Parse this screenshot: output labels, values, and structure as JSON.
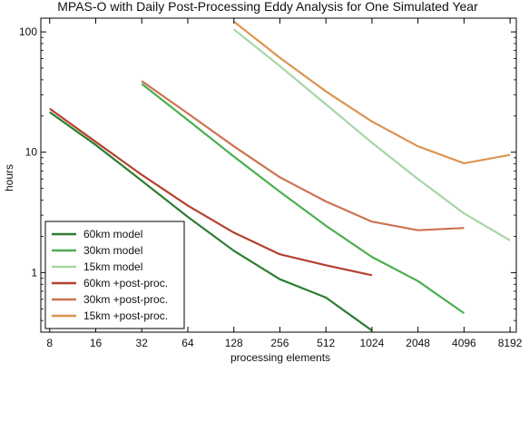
{
  "chart_data": {
    "type": "line",
    "title": "MPAS-O with Daily Post-Processing Eddy Analysis for One Simulated Year",
    "xlabel": "processing elements",
    "ylabel": "hours",
    "x_scale": "log2",
    "y_scale": "log10",
    "xlim": [
      7,
      9000
    ],
    "ylim": [
      0.32,
      130
    ],
    "xticks": [
      8,
      16,
      32,
      64,
      128,
      256,
      512,
      1024,
      2048,
      4096,
      8192
    ],
    "xtick_labels": [
      "8",
      "16",
      "32",
      "64",
      "128",
      "256",
      "512",
      "1024",
      "2048",
      "4096",
      "8192"
    ],
    "yticks": [
      1,
      10,
      100
    ],
    "ytick_labels": [
      "1",
      "10",
      "100"
    ],
    "grid": false,
    "legend_position": "lower-left",
    "series": [
      {
        "name": "60km model",
        "color": "#2e7d32",
        "x": [
          8,
          16,
          32,
          64,
          128,
          256,
          512,
          1024
        ],
        "y": [
          21.5,
          11.5,
          5.8,
          2.9,
          1.52,
          0.88,
          0.62,
          0.33
        ]
      },
      {
        "name": "30km model",
        "color": "#4caf50",
        "x": [
          32,
          64,
          128,
          256,
          512,
          1024,
          2048,
          4096
        ],
        "y": [
          37,
          18.5,
          9.2,
          4.7,
          2.45,
          1.35,
          0.85,
          0.46
        ]
      },
      {
        "name": "15km model",
        "color": "#a5d6a7",
        "x": [
          128,
          256,
          512,
          1024,
          2048,
          4096,
          8192
        ],
        "y": [
          105,
          52,
          25,
          12,
          6.0,
          3.1,
          1.85
        ]
      },
      {
        "name": "60km +post-proc.",
        "color": "#b5412f",
        "x": [
          8,
          16,
          32,
          64,
          128,
          256,
          512,
          1024
        ],
        "y": [
          23,
          12.2,
          6.5,
          3.6,
          2.15,
          1.42,
          1.15,
          0.95
        ]
      },
      {
        "name": "30km +post-proc.",
        "color": "#cd7351",
        "x": [
          32,
          64,
          128,
          256,
          512,
          1024,
          2048,
          4096
        ],
        "y": [
          39,
          21,
          11.2,
          6.2,
          3.9,
          2.65,
          2.25,
          2.35
        ]
      },
      {
        "name": "15km +post-proc.",
        "color": "#dd9452",
        "x": [
          128,
          256,
          512,
          1024,
          2048,
          4096,
          8192
        ],
        "y": [
          122,
          61,
          32,
          18,
          11.2,
          8.1,
          9.5
        ]
      }
    ]
  }
}
